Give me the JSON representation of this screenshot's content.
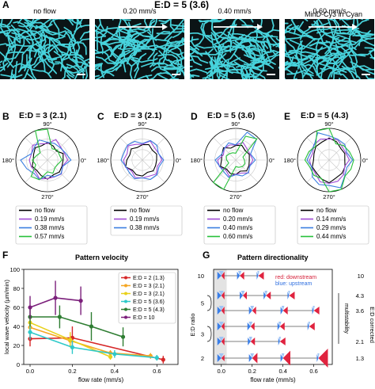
{
  "panel_a": {
    "letter": "A",
    "header": "E:D = 5 (3.6)",
    "stain": "MinD-Cy3 in Cyan",
    "images": [
      {
        "label": "no flow",
        "arrow": false
      },
      {
        "label": "0.20 mm/s",
        "arrow": true
      },
      {
        "label": "0.40 mm/s",
        "arrow": true
      },
      {
        "label": "0.60 mm/s",
        "arrow": true
      }
    ]
  },
  "polar": {
    "deg_top": "90°",
    "deg_left": "180°",
    "deg_right": "0°",
    "deg_bottom": "270°",
    "panels": [
      {
        "letter": "B",
        "title": "E:D = 3 (2.1)",
        "legend": [
          "no flow",
          "0.19 mm/s",
          "0.38 mm/s",
          "0.57 mm/s"
        ]
      },
      {
        "letter": "C",
        "title": "E:D = 3 (2.1)",
        "legend": [
          "no flow",
          "0.19 mm/s",
          "0.38 mm/s"
        ]
      },
      {
        "letter": "D",
        "title": "E:D = 5 (3.6)",
        "legend": [
          "no flow",
          "0.20 mm/s",
          "0.40 mm/s",
          "0.60 mm/s"
        ]
      },
      {
        "letter": "E",
        "title": "E:D = 5 (4.3)",
        "legend": [
          "no flow",
          "0.14 mm/s",
          "0.29 mm/s",
          "0.44 mm/s"
        ]
      }
    ]
  },
  "panel_f": {
    "letter": "F",
    "title": "Pattern velocity",
    "legend": [
      "E:D = 2 (1.3)",
      "E:D = 3 (2.1)",
      "E:D = 3 (2.1)",
      "E:D = 5 (3.6)",
      "E:D = 5 (4.3)",
      "E:D = 10"
    ]
  },
  "panel_g": {
    "letter": "G",
    "title": "Pattern directionality",
    "legend_red": "red: downstream",
    "legend_blue": "blue: upstream",
    "ylabel_left": "E:D ratio",
    "ylabel_right": "E:D corrected",
    "multistability": "multistability",
    "left_ticks": [
      "10",
      "5",
      "3",
      "2"
    ],
    "right_ticks": [
      "10",
      "4.3",
      "3.6",
      "2.1",
      "1.3"
    ]
  },
  "chart_data": [
    {
      "type": "line",
      "panel": "F",
      "title": "Pattern velocity",
      "xlabel": "flow rate (mm/s)",
      "ylabel": "local wave velocity (µm/min)",
      "xlim": [
        -0.03,
        0.7
      ],
      "ylim": [
        0,
        100
      ],
      "xticks": [
        "0.0",
        "0.2",
        "0.4",
        "0.6"
      ],
      "yticks": [
        "0",
        "20",
        "40",
        "60",
        "80",
        "100"
      ],
      "legend_position": "top-right",
      "series": [
        {
          "name": "E:D = 2 (1.3)",
          "color": "#d62728",
          "x": [
            0.0,
            0.2,
            0.63
          ],
          "y": [
            27,
            28,
            5
          ],
          "err": [
            8,
            12,
            4
          ]
        },
        {
          "name": "E:D = 3 (2.1)",
          "color": "#f5a623",
          "x": [
            0.0,
            0.19,
            0.38,
            0.57
          ],
          "y": [
            39,
            25,
            12,
            9
          ],
          "err": [
            6,
            7,
            3,
            3
          ]
        },
        {
          "name": "E:D = 3 (2.1)",
          "color": "#e8d11a",
          "x": [
            0.0,
            0.19,
            0.38
          ],
          "y": [
            44,
            26,
            8
          ],
          "err": [
            7,
            8,
            3
          ]
        },
        {
          "name": "E:D = 5 (3.6)",
          "color": "#2ec9c9",
          "x": [
            0.0,
            0.2,
            0.4,
            0.6
          ],
          "y": [
            34,
            18,
            11,
            7
          ],
          "err": [
            8,
            7,
            4,
            3
          ]
        },
        {
          "name": "E:D = 5 (4.3)",
          "color": "#2e7d32",
          "x": [
            0.0,
            0.14,
            0.29,
            0.44
          ],
          "y": [
            50,
            50,
            40,
            29
          ],
          "err": [
            10,
            12,
            15,
            10
          ]
        },
        {
          "name": "E:D = 10",
          "color": "#7b1f7b",
          "x": [
            0.0,
            0.12,
            0.24
          ],
          "y": [
            60,
            70,
            67
          ],
          "err": [
            12,
            18,
            15
          ]
        }
      ]
    },
    {
      "type": "scatter",
      "panel": "G",
      "title": "Pattern directionality",
      "xlabel": "flow rate (mm/s)",
      "xlim": [
        -0.05,
        0.72
      ],
      "xticks": [
        "0.0",
        "0.2",
        "0.4",
        "0.6"
      ],
      "rows": [
        {
          "left": "10",
          "right": "10",
          "x": [
            0.0,
            0.12,
            0.24
          ]
        },
        {
          "left": "",
          "right": "4.3",
          "x": [
            0.0,
            0.14,
            0.29,
            0.44
          ]
        },
        {
          "left": "5",
          "right": "3.6",
          "x": [
            0.0,
            0.2,
            0.4,
            0.6
          ]
        },
        {
          "left": "",
          "right": "",
          "x": [
            0.0,
            0.19,
            0.38,
            0.57
          ]
        },
        {
          "left": "3",
          "right": "2.1",
          "x": [
            0.0,
            0.19,
            0.38
          ]
        },
        {
          "left": "2",
          "right": "1.3",
          "x": [
            0.0,
            0.2,
            0.4,
            0.63
          ]
        }
      ]
    }
  ]
}
